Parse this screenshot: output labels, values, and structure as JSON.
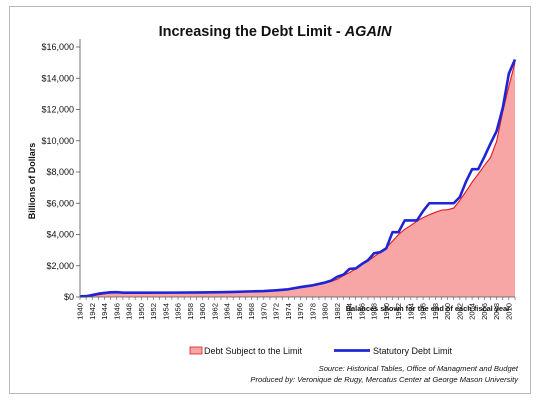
{
  "chart_data": {
    "type": "area",
    "title": "Increasing the Debt Limit - ",
    "title_accent": "AGAIN",
    "ylabel": "Billions of Dollars",
    "ylim": [
      0,
      16000
    ],
    "yticks": [
      "$0",
      "$2,000",
      "$4,000",
      "$6,000",
      "$8,000",
      "$10,000",
      "$12,000",
      "$14,000",
      "$16,000"
    ],
    "ytick_values": [
      0,
      2000,
      4000,
      6000,
      8000,
      10000,
      12000,
      14000,
      16000
    ],
    "xlim": [
      1940,
      2011
    ],
    "xticks": [
      "1940",
      "1942",
      "1944",
      "1946",
      "1948",
      "1950",
      "1952",
      "1954",
      "1956",
      "1958",
      "1960",
      "1962",
      "1964",
      "1966",
      "1968",
      "1970",
      "1972",
      "1974",
      "1976",
      "1978",
      "1980",
      "1982",
      "1984",
      "1986",
      "1988",
      "1990",
      "1992",
      "1994",
      "1996",
      "1998",
      "2000",
      "2002",
      "2004",
      "2006",
      "2008",
      "2010"
    ],
    "note": "Balances shown for the end of each fiscal year",
    "grid": false,
    "legend_position": "bottom",
    "series": [
      {
        "name": "Debt Subject to the Limit",
        "kind": "area",
        "color": "#f7a5a5",
        "edge_color": "#e0191f",
        "x": [
          1940,
          1941,
          1942,
          1943,
          1944,
          1945,
          1946,
          1947,
          1948,
          1949,
          1950,
          1951,
          1952,
          1953,
          1954,
          1955,
          1956,
          1957,
          1958,
          1959,
          1960,
          1961,
          1962,
          1963,
          1964,
          1965,
          1966,
          1967,
          1968,
          1969,
          1970,
          1971,
          1972,
          1973,
          1974,
          1975,
          1976,
          1977,
          1978,
          1979,
          1980,
          1981,
          1982,
          1983,
          1984,
          1985,
          1986,
          1987,
          1988,
          1989,
          1990,
          1991,
          1992,
          1993,
          1994,
          1995,
          1996,
          1997,
          1998,
          1999,
          2000,
          2001,
          2002,
          2003,
          2004,
          2005,
          2006,
          2007,
          2008,
          2009,
          2010,
          2011
        ],
        "values": [
          43,
          48,
          73,
          140,
          205,
          255,
          265,
          255,
          250,
          250,
          255,
          255,
          255,
          260,
          270,
          275,
          275,
          270,
          275,
          285,
          285,
          290,
          300,
          305,
          310,
          315,
          320,
          325,
          345,
          355,
          375,
          400,
          425,
          455,
          475,
          535,
          620,
          700,
          770,
          825,
          905,
          1000,
          1140,
          1375,
          1560,
          1815,
          2110,
          2300,
          2580,
          2860,
          3160,
          3570,
          4000,
          4330,
          4580,
          4860,
          5080,
          5260,
          5420,
          5560,
          5590,
          5690,
          6190,
          6760,
          7350,
          7870,
          8420,
          8920,
          9960,
          11850,
          13500,
          15000
        ]
      },
      {
        "name": "Statutory Debt Limit",
        "kind": "line",
        "color": "#1f24d6",
        "x": [
          1940,
          1941,
          1942,
          1943,
          1944,
          1945,
          1946,
          1947,
          1950,
          1955,
          1960,
          1963,
          1965,
          1968,
          1970,
          1972,
          1974,
          1976,
          1978,
          1980,
          1981,
          1982,
          1983,
          1984,
          1985,
          1986,
          1987,
          1988,
          1989,
          1990,
          1991,
          1992,
          1993,
          1994,
          1995,
          1996,
          1997,
          1998,
          1999,
          2000,
          2001,
          2002,
          2003,
          2004,
          2005,
          2006,
          2007,
          2008,
          2009,
          2010,
          2011
        ],
        "values": [
          45,
          49,
          125,
          210,
          260,
          300,
          310,
          275,
          275,
          280,
          295,
          310,
          325,
          360,
          380,
          430,
          495,
          635,
          750,
          925,
          1050,
          1300,
          1430,
          1800,
          1830,
          2110,
          2350,
          2800,
          2870,
          3120,
          4150,
          4150,
          4900,
          4900,
          4900,
          5500,
          6000,
          6000,
          6000,
          6000,
          6000,
          6400,
          7380,
          8180,
          8180,
          8970,
          9820,
          10620,
          12100,
          14300,
          15200
        ]
      }
    ],
    "source_label": "Source: ",
    "source_text": "Historical Tables, Office of Managment and Budget",
    "produced_text": "Produced by: Veronique de Rugy, Mercatus Center at George Mason University"
  }
}
